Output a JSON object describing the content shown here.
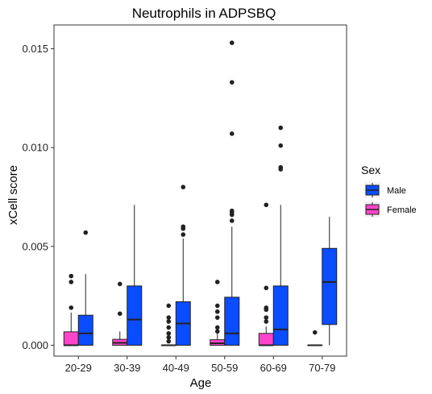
{
  "chart_data": {
    "type": "boxplot",
    "title": "Neutrophils in ADPSBQ",
    "xlabel": "Age",
    "ylabel": "xCell score",
    "categories": [
      "20-29",
      "30-39",
      "40-49",
      "50-59",
      "60-69",
      "70-79"
    ],
    "ylim": [
      -0.00055,
      0.0162
    ],
    "yticks": [
      0,
      0.005,
      0.01,
      0.015
    ],
    "ytick_labels": [
      "0.000",
      "0.005",
      "0.010",
      "0.015"
    ],
    "grid": false,
    "legend": {
      "title": "Sex",
      "position": "right",
      "entries": [
        {
          "name": "Male",
          "color": "#0a4cff"
        },
        {
          "name": "Female",
          "color": "#ff44cc"
        }
      ]
    },
    "series": [
      {
        "name": "Female",
        "color": "#ff44cc",
        "boxes": [
          {
            "category": "20-29",
            "q1": 0.0,
            "median": 0.0,
            "q3": 0.00068,
            "whisker_low": 0.0,
            "whisker_high": 0.00165,
            "outliers": [
              0.0019,
              0.0032,
              0.0035
            ]
          },
          {
            "category": "30-39",
            "q1": 0.0,
            "median": 0.00012,
            "q3": 0.0003,
            "whisker_low": 0.0,
            "whisker_high": 0.0007,
            "outliers": [
              0.0016,
              0.0031
            ]
          },
          {
            "category": "40-49",
            "q1": 0.0,
            "median": 0.0,
            "q3": 0.0,
            "whisker_low": 0.0,
            "whisker_high": 0.0,
            "outliers": [
              0.0002,
              0.0004,
              0.0006,
              0.0009,
              0.0012,
              0.0014,
              0.002
            ]
          },
          {
            "category": "50-59",
            "q1": 0.0,
            "median": 0.0001,
            "q3": 0.00028,
            "whisker_low": 0.0,
            "whisker_high": 0.0006,
            "outliers": [
              0.0007,
              0.0009,
              0.0014,
              0.0017,
              0.002,
              0.0032
            ]
          },
          {
            "category": "60-69",
            "q1": 0.0,
            "median": 0.0,
            "q3": 0.0006,
            "whisker_low": 0.0,
            "whisker_high": 0.00095,
            "outliers": [
              0.0012,
              0.0014,
              0.0018,
              0.0019,
              0.0029,
              0.0071
            ]
          },
          {
            "category": "70-79",
            "q1": 0.0,
            "median": 0.0,
            "q3": 0.0,
            "whisker_low": 0.0,
            "whisker_high": 0.0,
            "outliers": [
              0.00065
            ]
          }
        ]
      },
      {
        "name": "Male",
        "color": "#0a4cff",
        "boxes": [
          {
            "category": "20-29",
            "q1": 0.0,
            "median": 0.0006,
            "q3": 0.00152,
            "whisker_low": 0.0,
            "whisker_high": 0.0036,
            "outliers": [
              0.0057
            ]
          },
          {
            "category": "30-39",
            "q1": 0.0,
            "median": 0.0013,
            "q3": 0.003,
            "whisker_low": 0.0,
            "whisker_high": 0.0071,
            "outliers": []
          },
          {
            "category": "40-49",
            "q1": 0.0,
            "median": 0.0011,
            "q3": 0.0022,
            "whisker_low": 0.0,
            "whisker_high": 0.0054,
            "outliers": [
              0.0056,
              0.0059,
              0.006,
              0.008
            ]
          },
          {
            "category": "50-59",
            "q1": 0.0,
            "median": 0.0006,
            "q3": 0.00243,
            "whisker_low": 0.0,
            "whisker_high": 0.006,
            "outliers": [
              0.0063,
              0.0066,
              0.0067,
              0.0068,
              0.0107,
              0.0133,
              0.0153
            ]
          },
          {
            "category": "60-69",
            "q1": 0.0,
            "median": 0.0008,
            "q3": 0.003,
            "whisker_low": 0.0,
            "whisker_high": 0.0071,
            "outliers": [
              0.0089,
              0.009,
              0.0101,
              0.011
            ]
          },
          {
            "category": "70-79",
            "q1": 0.00105,
            "median": 0.0032,
            "q3": 0.0049,
            "whisker_low": 0.0,
            "whisker_high": 0.0065,
            "outliers": []
          }
        ]
      }
    ]
  }
}
